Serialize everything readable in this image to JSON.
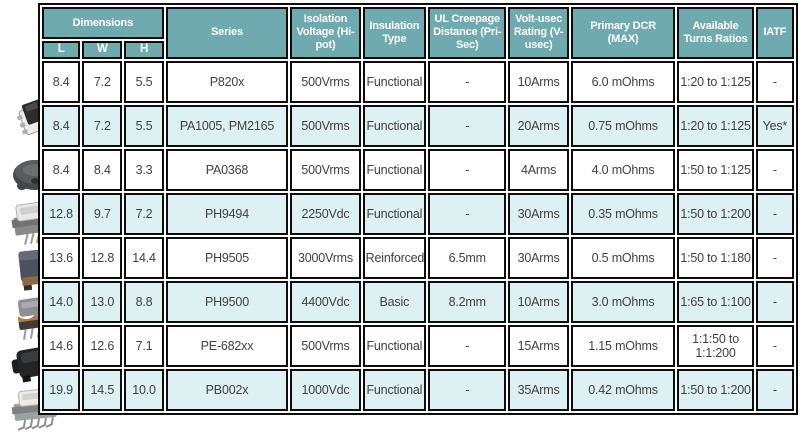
{
  "colors": {
    "header_bg": "#6FAAAF",
    "header_text": "#FFFFFF",
    "row_bg": "#FFFFFF",
    "row_alt_bg": "#DDF0F2",
    "border": "#0D0D0D",
    "body_text": "#414141"
  },
  "table": {
    "header": {
      "dimensions": "Dimensions",
      "l": "L",
      "w": "W",
      "h": "H",
      "series": "Series",
      "isolation_voltage": "Isolation Voltage (Hi-pot)",
      "insulation_type": "Insulation Type",
      "ul_creepage": "UL Creepage Distance (Pri-Sec)",
      "volt_usec": "Volt-usec Rating (V-usec)",
      "primary_dcr": "Primary DCR (MAX)",
      "turns_ratios": "Available Turns Ratios",
      "iatf": "IATF"
    },
    "rows": [
      {
        "l": "8.4",
        "w": "7.2",
        "h": "5.5",
        "series": "P820x",
        "isolation_voltage": "500Vrms",
        "insulation_type": "Functional",
        "ul_creepage": "-",
        "volt_usec": "10Arms",
        "primary_dcr": "6.0 mOhms",
        "turns_ratios": "1:20 to 1:125",
        "iatf": "-"
      },
      {
        "l": "8.4",
        "w": "7.2",
        "h": "5.5",
        "series": "PA1005, PM2165",
        "isolation_voltage": "500Vrms",
        "insulation_type": "Functional",
        "ul_creepage": "-",
        "volt_usec": "20Arms",
        "primary_dcr": "0.75 mOhms",
        "turns_ratios": "1:20 to 1:125",
        "iatf": "Yes*"
      },
      {
        "l": "8.4",
        "w": "8.4",
        "h": "3.3",
        "series": "PA0368",
        "isolation_voltage": "500Vrms",
        "insulation_type": "Functional",
        "ul_creepage": "-",
        "volt_usec": "4Arms",
        "primary_dcr": "4.0 mOhms",
        "turns_ratios": "1:50 to 1:125",
        "iatf": "-"
      },
      {
        "l": "12.8",
        "w": "9.7",
        "h": "7.2",
        "series": "PH9494",
        "isolation_voltage": "2250Vdc",
        "insulation_type": "Functional",
        "ul_creepage": "-",
        "volt_usec": "30Arms",
        "primary_dcr": "0.35 mOhms",
        "turns_ratios": "1:50 to 1:200",
        "iatf": "-"
      },
      {
        "l": "13.6",
        "w": "12.8",
        "h": "14.4",
        "series": "PH9505",
        "isolation_voltage": "3000Vrms",
        "insulation_type": "Reinforced",
        "ul_creepage": "6.5mm",
        "volt_usec": "30Arms",
        "primary_dcr": "0.5 mOhms",
        "turns_ratios": "1:50 to 1:180",
        "iatf": "-"
      },
      {
        "l": "14.0",
        "w": "13.0",
        "h": "8.8",
        "series": "PH9500",
        "isolation_voltage": "4400Vdc",
        "insulation_type": "Basic",
        "ul_creepage": "8.2mm",
        "volt_usec": "10Arms",
        "primary_dcr": "3.0 mOhms",
        "turns_ratios": "1:65 to 1:100",
        "iatf": "-"
      },
      {
        "l": "14.6",
        "w": "12.6",
        "h": "7.1",
        "series": "PE-682xx",
        "isolation_voltage": "500Vrms",
        "insulation_type": "Functional",
        "ul_creepage": "-",
        "volt_usec": "15Arms",
        "primary_dcr": "1.15 mOhms",
        "turns_ratios": "1:1:50 to 1:1:200",
        "iatf": "-"
      },
      {
        "l": "19.9",
        "w": "14.5",
        "h": "10.0",
        "series": "PB002x",
        "isolation_voltage": "1000Vdc",
        "insulation_type": "Functional",
        "ul_creepage": "-",
        "volt_usec": "35Arms",
        "primary_dcr": "0.42 mOhms",
        "turns_ratios": "1:50 to 1:200",
        "iatf": "-"
      }
    ],
    "photos": [
      "smd-transformer-photo",
      "toroid-inductor-photo",
      "ecore-transformer-photo",
      "potted-block-transformer-photo",
      "stacked-copper-transformer-photo",
      "molded-black-transformer-photo",
      "ecore-gullwing-transformer-photo"
    ]
  }
}
